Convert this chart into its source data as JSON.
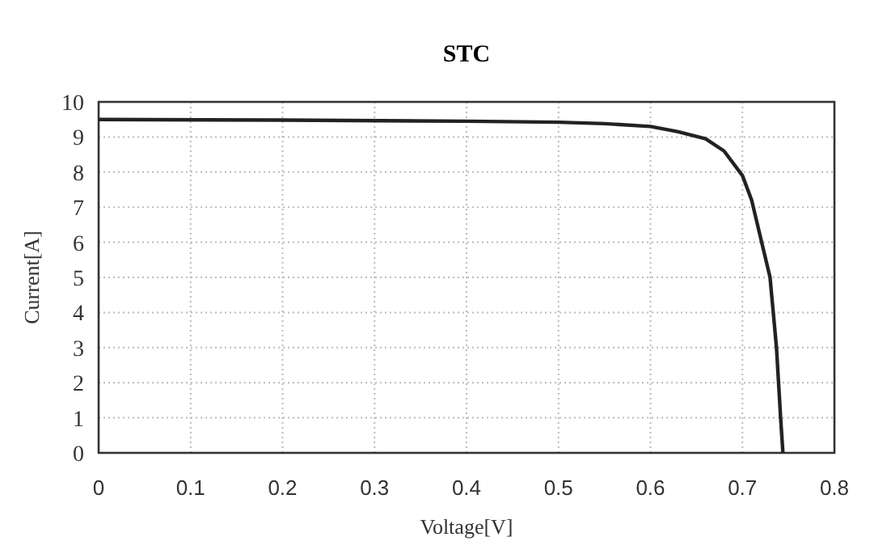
{
  "chart_data": {
    "type": "line",
    "title": "STC",
    "xlabel": "Voltage[V]",
    "ylabel": "Current[A]",
    "x": [
      0,
      0.2,
      0.4,
      0.5,
      0.55,
      0.6,
      0.63,
      0.66,
      0.68,
      0.7,
      0.71,
      0.72,
      0.73,
      0.737,
      0.7415,
      0.744
    ],
    "series": [
      {
        "color": "#222222",
        "values": [
          9.5,
          9.48,
          9.45,
          9.42,
          9.38,
          9.3,
          9.15,
          8.95,
          8.6,
          7.9,
          7.2,
          6.1,
          5.0,
          3.0,
          1.0,
          0
        ]
      }
    ],
    "xlim": [
      0,
      0.8
    ],
    "xticks": [
      0,
      0.1,
      0.2,
      0.3,
      0.4,
      0.5,
      0.6,
      0.7,
      0.8
    ],
    "ylim": [
      0,
      10
    ],
    "yticks": [
      0,
      1,
      2,
      3,
      4,
      5,
      6,
      7,
      8,
      9,
      10
    ],
    "grid": true,
    "marker": "none",
    "line_style": "solid"
  }
}
